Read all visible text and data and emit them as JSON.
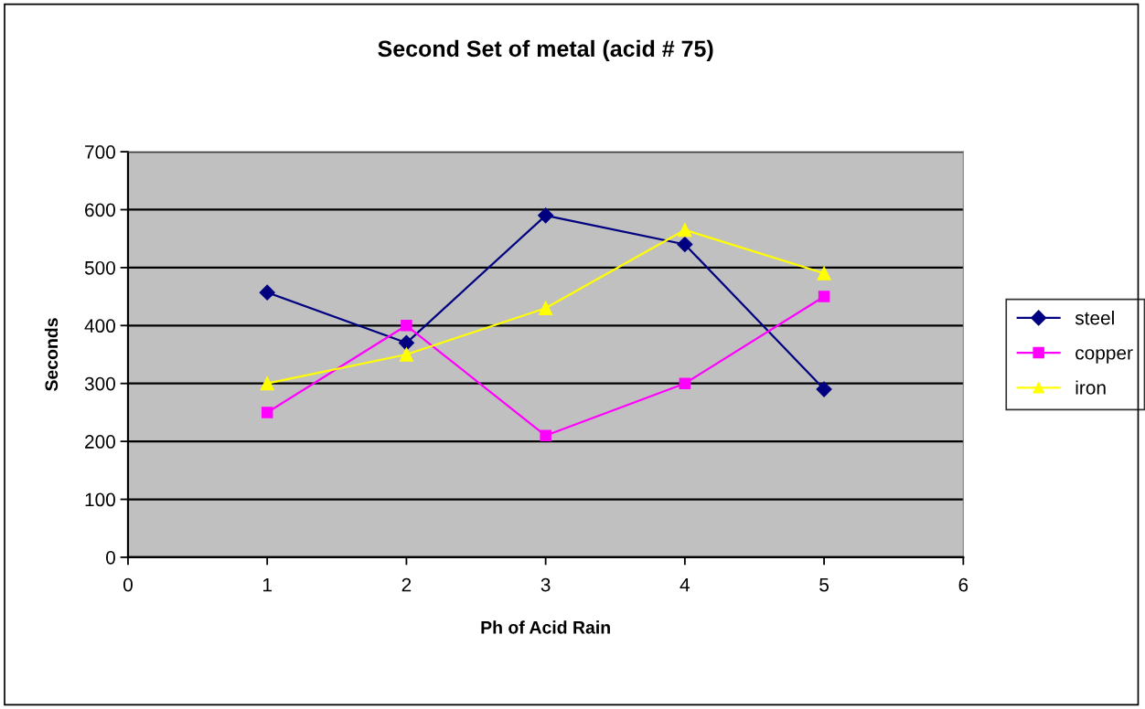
{
  "chart_data": {
    "type": "line",
    "title": "Second Set of metal (acid # 75)",
    "xlabel": "Ph of Acid Rain",
    "ylabel": "Seconds",
    "x": [
      1,
      2,
      3,
      4,
      5
    ],
    "series": [
      {
        "name": "steel",
        "color": "#000080",
        "marker": "diamond",
        "values": [
          457,
          370,
          590,
          540,
          290
        ]
      },
      {
        "name": "copper",
        "color": "#ff00ff",
        "marker": "square",
        "values": [
          250,
          400,
          210,
          300,
          450
        ]
      },
      {
        "name": "iron",
        "color": "#ffff00",
        "marker": "triangle",
        "values": [
          300,
          350,
          430,
          565,
          490
        ]
      }
    ],
    "xlim": [
      0,
      6
    ],
    "xticks": [
      0,
      1,
      2,
      3,
      4,
      5,
      6
    ],
    "ylim": [
      0,
      700
    ],
    "yticks": [
      0,
      100,
      200,
      300,
      400,
      500,
      600,
      700
    ],
    "grid": "y",
    "legend": "right",
    "line_style": "solid"
  }
}
